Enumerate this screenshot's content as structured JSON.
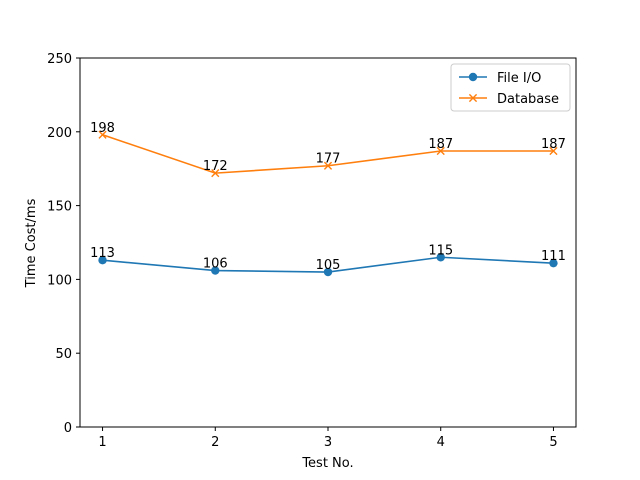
{
  "chart_data": {
    "type": "line",
    "x": [
      1,
      2,
      3,
      4,
      5
    ],
    "xlabel": "Test No.",
    "ylabel": "Time Cost/ms",
    "xlim": [
      0.8,
      5.2
    ],
    "ylim": [
      0,
      250
    ],
    "xticks": [
      "1",
      "2",
      "3",
      "4",
      "5"
    ],
    "yticks": [
      "0",
      "50",
      "100",
      "150",
      "200",
      "250"
    ],
    "grid": false,
    "legend_position": "top-right",
    "series": [
      {
        "name": "File I/O",
        "values": [
          113,
          106,
          105,
          115,
          111
        ],
        "color": "#1f77b4",
        "marker": "circle"
      },
      {
        "name": "Database",
        "values": [
          198,
          172,
          177,
          187,
          187
        ],
        "color": "#ff7f0e",
        "marker": "x"
      }
    ]
  }
}
